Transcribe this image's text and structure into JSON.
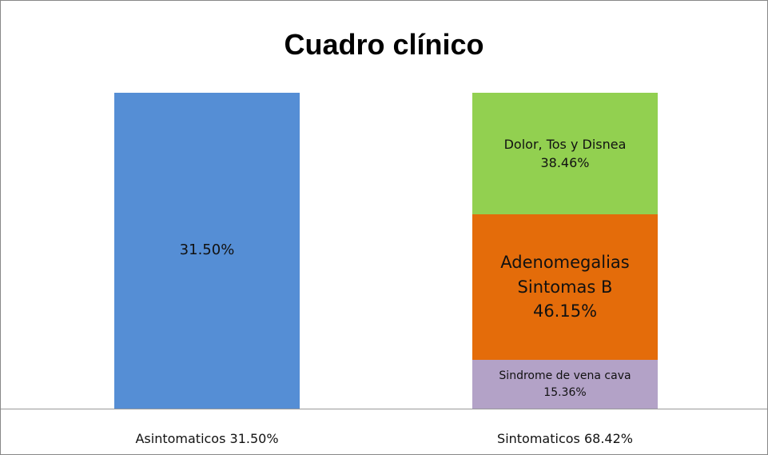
{
  "chart_data": {
    "type": "bar",
    "stacking": "percent",
    "title": "Cuadro clínico",
    "categories": [
      "Asintomaticos 31.50%",
      "Sintomaticos 68.42%"
    ],
    "series": [
      {
        "color": "#558ed5",
        "values": [
          31.5,
          null
        ],
        "value_labels": [
          "31.50%",
          null
        ]
      },
      {
        "name": "Sindrome de vena cava",
        "color": "#b3a2c7",
        "values": [
          null,
          15.36
        ],
        "value_labels": [
          null,
          "15.36%"
        ]
      },
      {
        "name": "Adenomegalias Sintomas B",
        "color": "#e46c0a",
        "values": [
          null,
          46.15
        ],
        "value_labels": [
          null,
          "46.15%"
        ]
      },
      {
        "name": "Dolor, Tos y Disnea",
        "color": "#92d050",
        "values": [
          null,
          38.46
        ],
        "value_labels": [
          null,
          "38.46%"
        ]
      }
    ]
  }
}
